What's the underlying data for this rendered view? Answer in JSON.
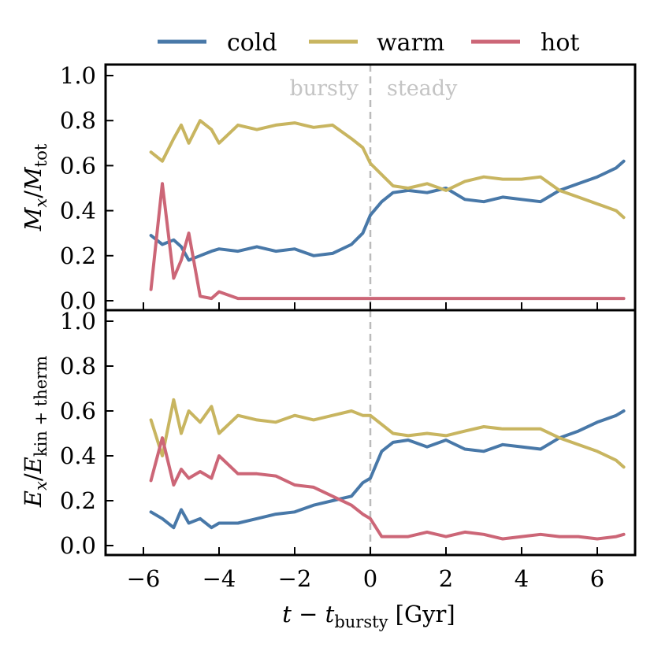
{
  "colors": {
    "cold": "#4878a8",
    "warm": "#c8b560",
    "hot": "#cc6677",
    "divider": "#bbbbbb"
  },
  "legend": [
    {
      "key": "cold",
      "label": "cold"
    },
    {
      "key": "warm",
      "label": "warm"
    },
    {
      "key": "hot",
      "label": "hot"
    }
  ],
  "annotations": {
    "left": "bursty",
    "right": "steady"
  },
  "x_axis": {
    "label": "t − t_bursty [Gyr]",
    "label_main": "t − t",
    "label_sub": "bursty",
    "label_unit": " [Gyr]",
    "ticks": [
      -6,
      -4,
      -2,
      0,
      2,
      4,
      6
    ],
    "tick_labels": [
      "−6",
      "−4",
      "−2",
      "0",
      "2",
      "4",
      "6"
    ],
    "range": [
      -7.0,
      7.0
    ]
  },
  "chart_data": [
    {
      "type": "line",
      "ylabel": "M_x/M_tot",
      "ylim": [
        0.0,
        1.0
      ],
      "yticks": [
        0.0,
        0.2,
        0.4,
        0.6,
        0.8,
        1.0
      ],
      "ytick_labels": [
        "0.0",
        "0.2",
        "0.4",
        "0.6",
        "0.8",
        "1.0"
      ],
      "x": [
        -5.8,
        -5.5,
        -5.2,
        -5.0,
        -4.8,
        -4.5,
        -4.2,
        -4.0,
        -3.5,
        -3.0,
        -2.5,
        -2.0,
        -1.5,
        -1.0,
        -0.5,
        -0.2,
        0.0,
        0.3,
        0.6,
        1.0,
        1.5,
        2.0,
        2.5,
        3.0,
        3.5,
        4.0,
        4.5,
        5.0,
        5.5,
        6.0,
        6.5,
        6.7
      ],
      "series": [
        {
          "name": "cold",
          "color_key": "cold",
          "values": [
            0.29,
            0.25,
            0.27,
            0.24,
            0.18,
            0.2,
            0.22,
            0.23,
            0.22,
            0.24,
            0.22,
            0.23,
            0.2,
            0.21,
            0.25,
            0.3,
            0.38,
            0.44,
            0.48,
            0.49,
            0.48,
            0.5,
            0.45,
            0.44,
            0.46,
            0.45,
            0.44,
            0.49,
            0.52,
            0.55,
            0.59,
            0.62
          ]
        },
        {
          "name": "warm",
          "color_key": "warm",
          "values": [
            0.66,
            0.62,
            0.72,
            0.78,
            0.7,
            0.8,
            0.76,
            0.7,
            0.78,
            0.76,
            0.78,
            0.79,
            0.77,
            0.78,
            0.72,
            0.68,
            0.61,
            0.56,
            0.51,
            0.5,
            0.52,
            0.49,
            0.53,
            0.55,
            0.54,
            0.54,
            0.55,
            0.49,
            0.46,
            0.43,
            0.4,
            0.37
          ]
        },
        {
          "name": "hot",
          "color_key": "hot",
          "values": [
            0.05,
            0.52,
            0.1,
            0.18,
            0.3,
            0.02,
            0.01,
            0.04,
            0.01,
            0.01,
            0.01,
            0.01,
            0.01,
            0.01,
            0.01,
            0.01,
            0.01,
            0.01,
            0.01,
            0.01,
            0.01,
            0.01,
            0.01,
            0.01,
            0.01,
            0.01,
            0.01,
            0.01,
            0.01,
            0.01,
            0.01,
            0.01
          ]
        }
      ]
    },
    {
      "type": "line",
      "ylabel": "E_x/E_kin+therm",
      "ylim": [
        0.0,
        1.0
      ],
      "yticks": [
        0.0,
        0.2,
        0.4,
        0.6,
        0.8,
        1.0
      ],
      "ytick_labels": [
        "0.0",
        "0.2",
        "0.4",
        "0.6",
        "0.8",
        "1.0"
      ],
      "x": [
        -5.8,
        -5.5,
        -5.2,
        -5.0,
        -4.8,
        -4.5,
        -4.2,
        -4.0,
        -3.5,
        -3.0,
        -2.5,
        -2.0,
        -1.5,
        -1.0,
        -0.5,
        -0.2,
        0.0,
        0.3,
        0.6,
        1.0,
        1.5,
        2.0,
        2.5,
        3.0,
        3.5,
        4.0,
        4.5,
        5.0,
        5.5,
        6.0,
        6.5,
        6.7
      ],
      "series": [
        {
          "name": "cold",
          "color_key": "cold",
          "values": [
            0.15,
            0.12,
            0.08,
            0.16,
            0.1,
            0.12,
            0.08,
            0.1,
            0.1,
            0.12,
            0.14,
            0.15,
            0.18,
            0.2,
            0.22,
            0.28,
            0.3,
            0.42,
            0.46,
            0.47,
            0.44,
            0.47,
            0.43,
            0.42,
            0.45,
            0.44,
            0.43,
            0.48,
            0.51,
            0.55,
            0.58,
            0.6
          ]
        },
        {
          "name": "warm",
          "color_key": "warm",
          "values": [
            0.56,
            0.4,
            0.65,
            0.5,
            0.6,
            0.55,
            0.62,
            0.5,
            0.58,
            0.56,
            0.55,
            0.58,
            0.56,
            0.58,
            0.6,
            0.58,
            0.58,
            0.54,
            0.5,
            0.49,
            0.5,
            0.49,
            0.51,
            0.53,
            0.52,
            0.52,
            0.52,
            0.48,
            0.45,
            0.42,
            0.38,
            0.35
          ]
        },
        {
          "name": "hot",
          "color_key": "hot",
          "values": [
            0.29,
            0.48,
            0.27,
            0.34,
            0.3,
            0.33,
            0.3,
            0.4,
            0.32,
            0.32,
            0.31,
            0.27,
            0.26,
            0.22,
            0.18,
            0.14,
            0.12,
            0.04,
            0.04,
            0.04,
            0.06,
            0.04,
            0.06,
            0.05,
            0.03,
            0.04,
            0.05,
            0.04,
            0.04,
            0.03,
            0.04,
            0.05
          ]
        }
      ]
    }
  ]
}
